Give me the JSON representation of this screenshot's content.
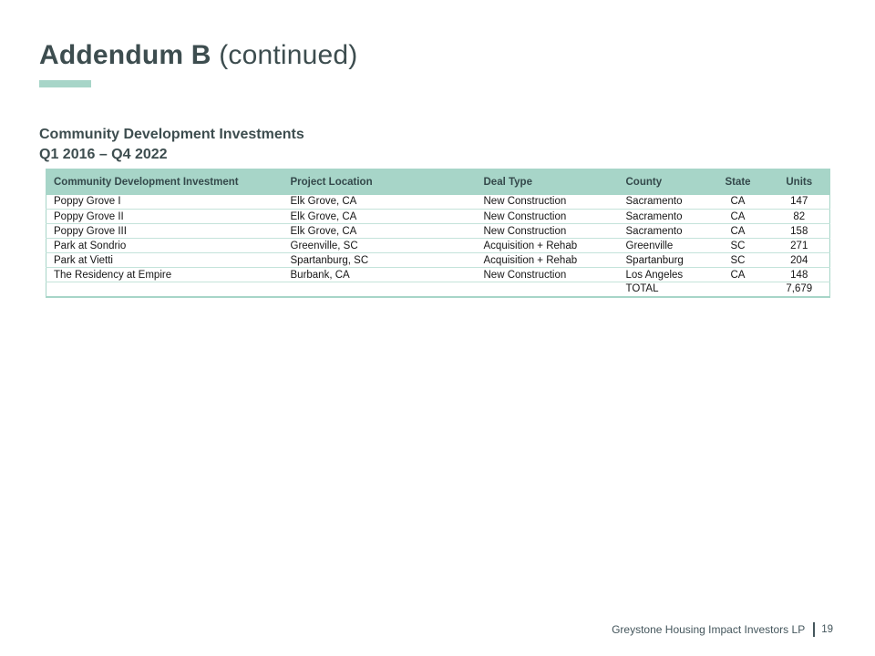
{
  "header": {
    "title_bold": "Addendum B",
    "title_continued": " (continued)",
    "subtitle_line1": "Community Development Investments",
    "subtitle_line2": "Q1 2016 – Q4 2022"
  },
  "table": {
    "columns": [
      "Community Development Investment",
      "Project Location",
      "Deal Type",
      "County",
      "State",
      "Units"
    ],
    "rows": [
      [
        "Poppy Grove I",
        "Elk Grove, CA",
        "New Construction",
        "Sacramento",
        "CA",
        "147"
      ],
      [
        "Poppy Grove II",
        "Elk Grove, CA",
        "New Construction",
        "Sacramento",
        "CA",
        "82"
      ],
      [
        "Poppy Grove III",
        "Elk Grove, CA",
        "New Construction",
        "Sacramento",
        "CA",
        "158"
      ],
      [
        "Park at Sondrio",
        "Greenville, SC",
        "Acquisition + Rehab",
        "Greenville",
        "SC",
        "271"
      ],
      [
        "Park at Vietti",
        "Spartanburg, SC",
        "Acquisition + Rehab",
        "Spartanburg",
        "SC",
        "204"
      ],
      [
        "The Residency at Empire",
        "Burbank, CA",
        "New Construction",
        "Los Angeles",
        "CA",
        "148"
      ],
      [
        "",
        "",
        "",
        "TOTAL",
        "",
        "7,679"
      ]
    ]
  },
  "footer": {
    "company": "Greystone Housing Impact Investors LP",
    "page_number": "19"
  },
  "colors": {
    "accent_teal": "#a7d5c8",
    "row_divider": "#c4e3da",
    "title_text": "#3d4d4f",
    "body_text": "#161616",
    "footer_text": "#44565c"
  }
}
